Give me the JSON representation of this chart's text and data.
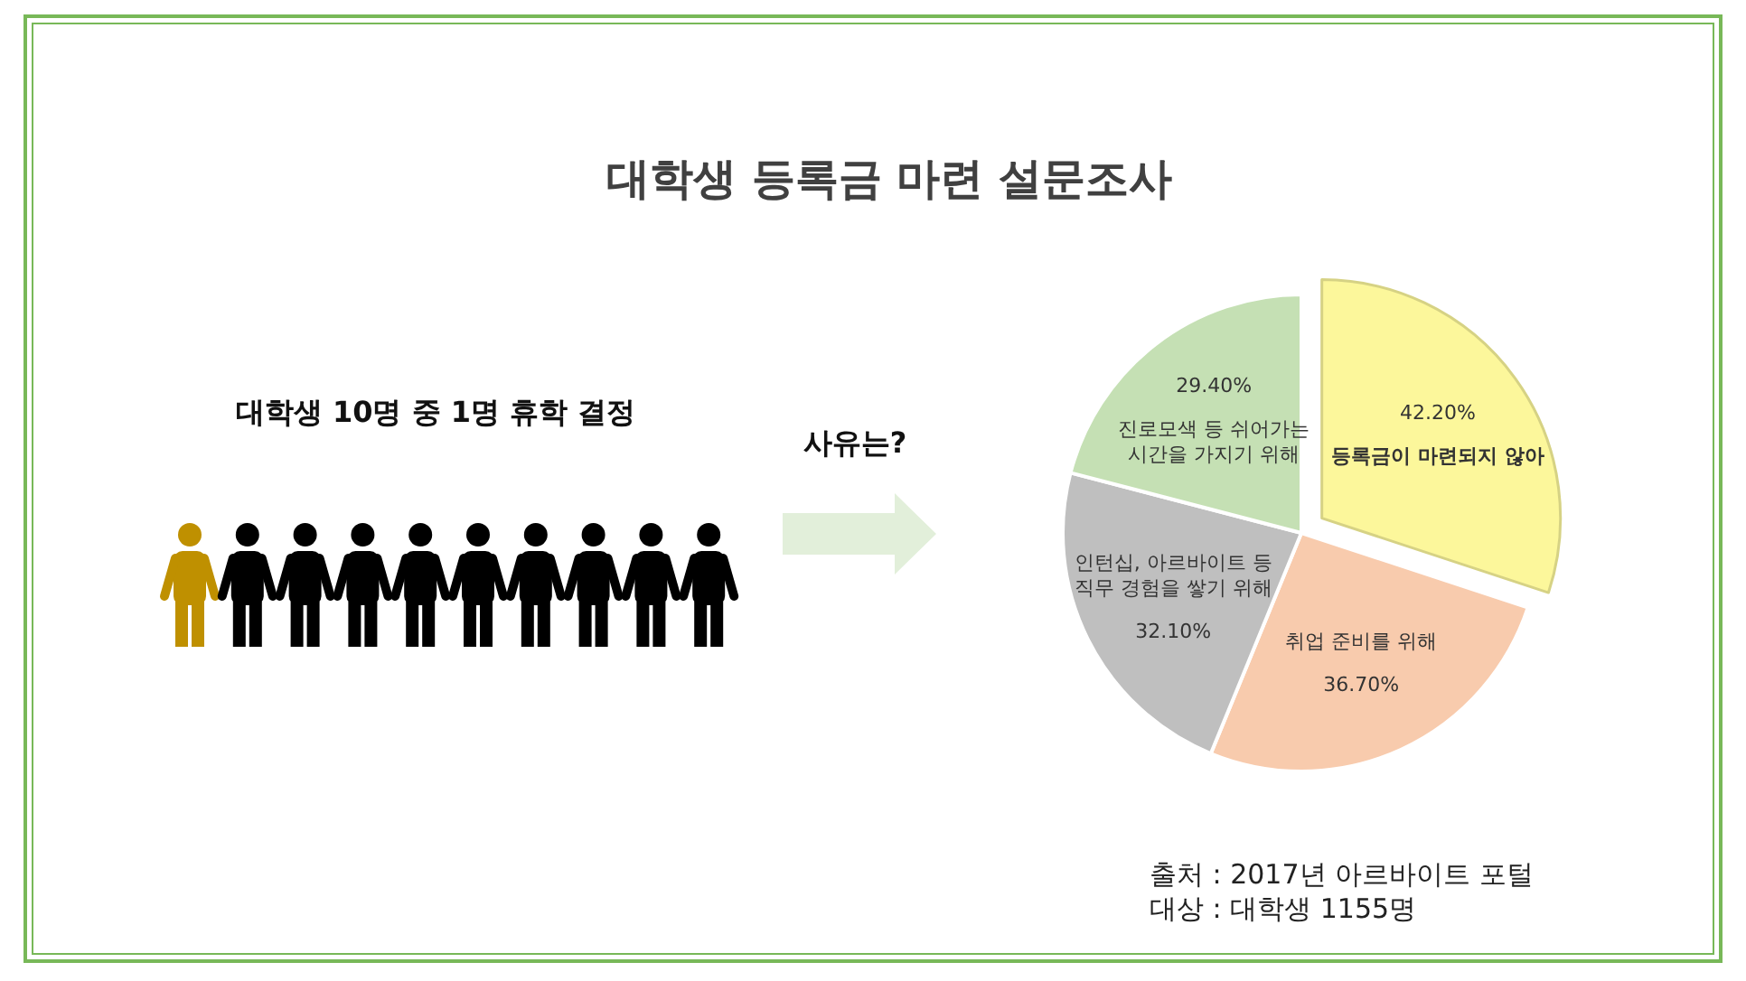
{
  "chart_data": {
    "type": "pie",
    "title": "대학생 등록금 마련 설문조사",
    "categories": [
      "등록금이 마련되지 않아",
      "취업 준비를 위해",
      "인턴십, 아르바이트 등 직무 경험을 쌓기 위해",
      "진로모색 등 쉬어가는 시간을 가지기 위해"
    ],
    "values": [
      42.2,
      36.7,
      32.1,
      29.4
    ],
    "value_labels": [
      "42.20%",
      "36.70%",
      "32.10%",
      "29.40%"
    ],
    "colors": [
      "#fcf79b",
      "#f8cbad",
      "#bfbfbf",
      "#c5e0b4"
    ],
    "annotations": [
      "대학생 10명 중 1명 휴학 결정",
      "사유는?",
      "출처 : 2017년 아르바이트 포털",
      "대상 : 대학생 1155명"
    ]
  }
}
